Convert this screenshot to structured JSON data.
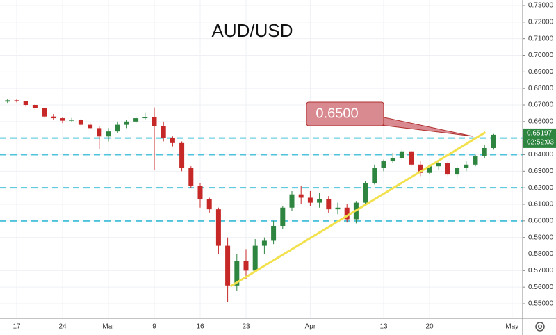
{
  "chart_data": {
    "type": "candlestick",
    "title": "AUD/USD",
    "categories": [
      null,
      "17",
      null,
      null,
      null,
      null,
      "24",
      null,
      null,
      null,
      null,
      "Mar",
      null,
      null,
      null,
      null,
      "9",
      null,
      null,
      null,
      null,
      "16",
      null,
      null,
      null,
      null,
      "23",
      null,
      null,
      null,
      null,
      null,
      null,
      "Apr",
      null,
      null,
      null,
      null,
      null,
      null,
      null,
      "13",
      null,
      null,
      null,
      null,
      "20",
      null,
      null,
      null,
      null,
      null,
      null,
      null,
      null,
      "May"
    ],
    "open": [
      0.672,
      0.6728,
      0.6722,
      0.67,
      0.668,
      0.663,
      0.662,
      0.6605,
      0.661,
      0.658,
      0.656,
      0.651,
      0.654,
      0.658,
      0.66,
      0.662,
      0.6625,
      0.657,
      0.65,
      0.647,
      0.632,
      0.621,
      0.613,
      0.607,
      0.585,
      0.561,
      0.576,
      0.57,
      0.585,
      0.588,
      0.597,
      0.608,
      0.616,
      0.614,
      0.611,
      0.613,
      0.607,
      0.608,
      0.601,
      0.611,
      0.623,
      0.632,
      0.636,
      0.638,
      0.642,
      0.634,
      0.629,
      0.633,
      0.635,
      0.628,
      0.632,
      0.634,
      0.639,
      0.644,
      null,
      null
    ],
    "high": [
      0.6735,
      0.6733,
      0.6725,
      0.6705,
      0.6685,
      0.6645,
      0.6625,
      0.6622,
      0.6615,
      0.6595,
      0.657,
      0.656,
      0.66,
      0.661,
      0.663,
      0.6655,
      0.6685,
      0.66,
      0.651,
      0.648,
      0.633,
      0.623,
      0.614,
      0.608,
      0.59,
      0.58,
      0.583,
      0.589,
      0.59,
      0.6,
      0.609,
      0.618,
      0.621,
      0.618,
      0.617,
      0.615,
      0.611,
      0.61,
      0.612,
      0.624,
      0.634,
      0.637,
      0.641,
      0.643,
      0.6425,
      0.636,
      0.634,
      0.637,
      0.636,
      0.633,
      0.636,
      0.64,
      0.646,
      0.6525,
      null,
      null
    ],
    "low": [
      0.6712,
      0.6715,
      0.669,
      0.667,
      0.662,
      0.661,
      0.659,
      0.6595,
      0.6575,
      0.6555,
      0.6435,
      0.648,
      0.653,
      0.656,
      0.659,
      0.661,
      0.631,
      0.648,
      0.645,
      0.63,
      0.62,
      0.608,
      0.605,
      0.58,
      0.551,
      0.558,
      0.565,
      0.569,
      0.58,
      0.586,
      0.595,
      0.606,
      0.61,
      0.609,
      0.608,
      0.605,
      0.604,
      0.599,
      0.5985,
      0.61,
      0.622,
      0.63,
      0.635,
      0.637,
      0.633,
      0.627,
      0.628,
      0.631,
      0.627,
      0.626,
      0.63,
      0.633,
      0.638,
      0.643,
      null,
      null
    ],
    "close": [
      0.6728,
      0.6722,
      0.67,
      0.668,
      0.663,
      0.662,
      0.6605,
      0.661,
      0.658,
      0.656,
      0.651,
      0.654,
      0.658,
      0.66,
      0.662,
      0.6625,
      0.657,
      0.65,
      0.647,
      0.632,
      0.621,
      0.613,
      0.607,
      0.585,
      0.561,
      0.576,
      0.57,
      0.585,
      0.588,
      0.597,
      0.608,
      0.616,
      0.614,
      0.611,
      0.613,
      0.607,
      0.608,
      0.601,
      0.611,
      0.623,
      0.632,
      0.636,
      0.638,
      0.642,
      0.634,
      0.629,
      0.633,
      0.635,
      0.628,
      0.632,
      0.634,
      0.639,
      0.644,
      0.652,
      null,
      null
    ],
    "up_color": "#2e8540",
    "down_color": "#c62828",
    "ylim": [
      0.54119,
      0.73336
    ],
    "yticks": [
      {
        "value": 0.55,
        "label": "0.55000"
      },
      {
        "value": 0.56,
        "label": "0.56000"
      },
      {
        "value": 0.57,
        "label": "0.57000"
      },
      {
        "value": 0.58,
        "label": "0.58000"
      },
      {
        "value": 0.59,
        "label": "0.59000"
      },
      {
        "value": 0.6,
        "label": "0.60000"
      },
      {
        "value": 0.61,
        "label": "0.61000"
      },
      {
        "value": 0.62,
        "label": "0.62000"
      },
      {
        "value": 0.63,
        "label": "0.63000"
      },
      {
        "value": 0.64,
        "label": "0.64000"
      },
      {
        "value": 0.65,
        "label": "0.65000"
      },
      {
        "value": 0.66,
        "label": "0.66000"
      },
      {
        "value": 0.67,
        "label": "0.67000"
      },
      {
        "value": 0.68,
        "label": "0.68000"
      },
      {
        "value": 0.69,
        "label": "0.69000"
      },
      {
        "value": 0.7,
        "label": "0.70000"
      },
      {
        "value": 0.71,
        "label": "0.71000"
      },
      {
        "value": 0.72,
        "label": "0.72000"
      },
      {
        "value": 0.73,
        "label": "0.73000"
      }
    ],
    "grid": true,
    "levels": [
      0.65,
      0.64,
      0.62,
      0.6
    ],
    "level_color": "#4fc3dc",
    "trendline": {
      "color": "#f2e14c",
      "x": [
        24.3,
        52.1
      ],
      "y": [
        0.5605,
        0.6535
      ]
    },
    "annotation": "0.6500",
    "price_tag": "0.65197",
    "countdown": "02:52:03"
  }
}
